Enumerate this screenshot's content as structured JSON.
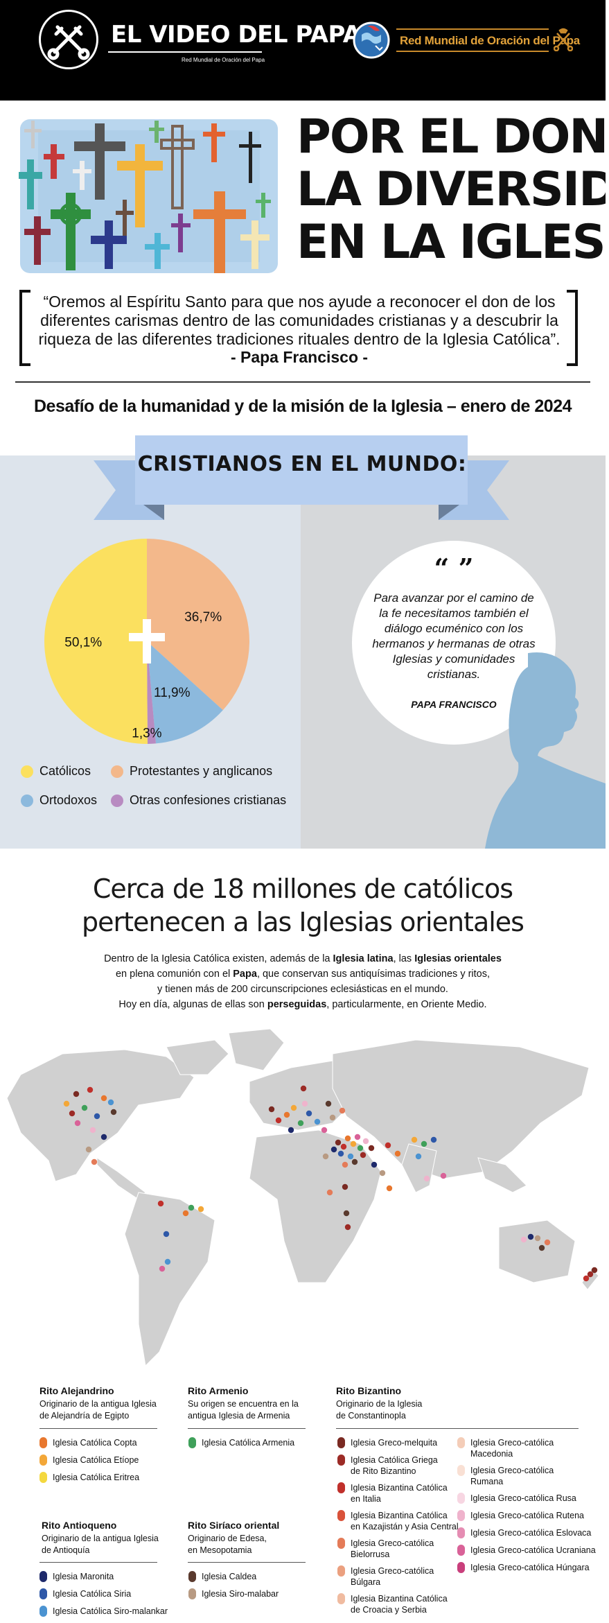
{
  "header": {
    "logo_title": "EL VIDEO DEL PAPA",
    "logo_subtitle": "Red Mundial de Oración del Papa",
    "network_name": "Red Mundial de Oración del Papa",
    "logo_icon": "crossed-keys-icon",
    "network_icon": "globe-heart-icon"
  },
  "title": {
    "lines": [
      "POR EL DON DE",
      "LA DIVERSIDAD",
      "EN LA IGLESIA"
    ],
    "prayer": "“Oremos al Espíritu Santo para que nos ayude a reconocer el don de los diferentes carismas dentro de las comunidades cristianas y a descubrir la riqueza de las diferentes tradiciones rituales dentro de la Iglesia Católica”.",
    "prayer_author": "- Papa Francisco -",
    "challenge": "Desafío de la humanidad y de la misión de la Iglesia – enero de 2024"
  },
  "christians": {
    "ribbon_title": "CRISTIANOS EN EL MUNDO:",
    "quote_marks": "“ ”",
    "quote": "Para avanzar por el camino de la fe necesitamos también el diálogo ecuménico con los hermanos y hermanas de otras Iglesias y comunidades cristianas.",
    "quote_author": "PAPA FRANCISCO"
  },
  "chart_data": {
    "type": "pie",
    "title": "",
    "slices": [
      {
        "label": "Católicos",
        "value": 50.1,
        "display": "50,1%",
        "color": "#fbe05f"
      },
      {
        "label": "Protestantes y anglicanos",
        "value": 36.7,
        "display": "36,7%",
        "color": "#f3b88b"
      },
      {
        "label": "Ortodoxos",
        "value": 11.9,
        "display": "11,9%",
        "color": "#8cb9dd"
      },
      {
        "label": "Otras confesiones cristianas",
        "value": 1.3,
        "display": "1,3%",
        "color": "#b88bc1"
      }
    ],
    "legend": [
      {
        "label": "Católicos",
        "color": "#fbe05f"
      },
      {
        "label": "Protestantes y anglicanos",
        "color": "#f3b88b"
      },
      {
        "label": "Ortodoxos",
        "color": "#8cb9dd"
      },
      {
        "label": "Otras confesiones cristianas",
        "color": "#b88bc1"
      }
    ],
    "legend_position": "bottom"
  },
  "eastern": {
    "heading_line1": "Cerca de 18 millones de católicos",
    "heading_line2": "pertenecen a las Iglesias orientales",
    "para": [
      [
        {
          "t": "Dentro de la Iglesia Católica existen, además de la "
        },
        {
          "t": "Iglesia latina",
          "b": true
        },
        {
          "t": ", las "
        },
        {
          "t": "Iglesias orientales",
          "b": true
        }
      ],
      [
        {
          "t": "en plena comunión con el "
        },
        {
          "t": "Papa",
          "b": true
        },
        {
          "t": ", que conservan sus antiquísimas tradiciones y ritos,"
        }
      ],
      [
        {
          "t": "y tienen más de 200 circunscripciones eclesiásticas en el mundo."
        }
      ],
      [
        {
          "t": "Hoy en día, algunas de ellas son "
        },
        {
          "t": "perseguidas",
          "b": true
        },
        {
          "t": ", particularmente, en Oriente Medio."
        }
      ]
    ]
  },
  "rites": {
    "alejandrino": {
      "title": "Rito Alejandrino",
      "origin": [
        "Originario de la antigua Iglesia",
        "de Alejandría de Egipto"
      ],
      "churches": [
        {
          "name": [
            "Iglesia Católica Copta"
          ],
          "color": "#e8772e"
        },
        {
          "name": [
            "Iglesia Católica Etíope"
          ],
          "color": "#f3a738"
        },
        {
          "name": [
            "Iglesia Católica Eritrea"
          ],
          "color": "#f4d83f"
        }
      ]
    },
    "armenio": {
      "title": "Rito Armenio",
      "origin": [
        "Su origen se encuentra en la",
        "antigua Iglesia de Armenia"
      ],
      "churches": [
        {
          "name": [
            "Iglesia Católica Armenia"
          ],
          "color": "#3fa05a"
        }
      ]
    },
    "bizantino": {
      "title": "Rito Bizantino",
      "origin": [
        "Originario de la Iglesia",
        "de Constantinopla"
      ],
      "churches_col1": [
        {
          "name": [
            "Iglesia Greco-melquita"
          ],
          "color": "#7a2a22"
        },
        {
          "name": [
            "Iglesia Católica Griega",
            "de Rito Bizantino"
          ],
          "color": "#9c2b26"
        },
        {
          "name": [
            "Iglesia Bizantina Católica",
            "en Italia"
          ],
          "color": "#c0302b"
        },
        {
          "name": [
            "Iglesia Bizantina Católica",
            "en Kazajistán y Asia Central"
          ],
          "color": "#d9523a"
        },
        {
          "name": [
            "Iglesia Greco-católica",
            "Bielorrusa"
          ],
          "color": "#e47b58"
        },
        {
          "name": [
            "Iglesia Greco-católica",
            "Búlgara"
          ],
          "color": "#eba07f"
        },
        {
          "name": [
            "Iglesia Bizantina Católica",
            "de Croacia y Serbia"
          ],
          "color": "#f0bba0"
        }
      ],
      "churches_col2": [
        {
          "name": [
            "Iglesia Greco-católica",
            "Macedonia"
          ],
          "color": "#f4cdb8"
        },
        {
          "name": [
            "Iglesia Greco-católica",
            "Rumana"
          ],
          "color": "#f9e0d4"
        },
        {
          "name": [
            "Iglesia Greco-católica Rusa"
          ],
          "color": "#f7d6e2"
        },
        {
          "name": [
            "Iglesia Greco-católica Rutena"
          ],
          "color": "#efb3cc"
        },
        {
          "name": [
            "Iglesia Greco-católica Eslovaca"
          ],
          "color": "#e58db3"
        },
        {
          "name": [
            "Iglesia Greco-católica Ucraniana"
          ],
          "color": "#d96298"
        },
        {
          "name": [
            "Iglesia Greco-católica Húngara"
          ],
          "color": "#c93f7c"
        }
      ]
    },
    "antioqueno": {
      "title": "Rito Antioqueno",
      "origin": [
        "Originario de la antigua Iglesia",
        "de Antioquía"
      ],
      "churches": [
        {
          "name": [
            "Iglesia Maronita"
          ],
          "color": "#1e2a6b"
        },
        {
          "name": [
            "Iglesia Católica Siria"
          ],
          "color": "#2e58a8"
        },
        {
          "name": [
            "Iglesia Católica Siro-malankar"
          ],
          "color": "#4b93d1"
        }
      ]
    },
    "siriaco": {
      "title": "Rito Siríaco oriental",
      "origin": [
        "Originario de Edesa,",
        "en Mesopotamia"
      ],
      "churches": [
        {
          "name": [
            "Iglesia Caldea"
          ],
          "color": "#5a3a2e"
        },
        {
          "name": [
            "Iglesia Siro-malabar"
          ],
          "color": "#b89a82"
        }
      ]
    }
  },
  "map": {
    "icon": "world-map-graphic"
  }
}
